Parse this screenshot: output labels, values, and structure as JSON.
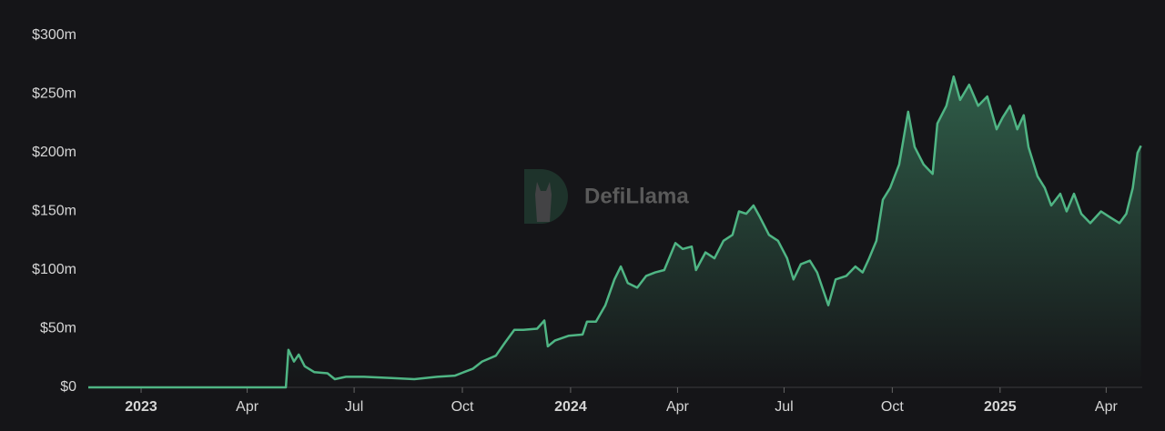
{
  "chart_data": {
    "type": "area",
    "watermark": "DefiLlama",
    "x": [
      2022.877,
      2023.337,
      2023.343,
      2023.356,
      2023.367,
      2023.381,
      2023.403,
      2023.434,
      2023.451,
      2023.477,
      2023.519,
      2023.583,
      2023.636,
      2023.689,
      2023.731,
      2023.752,
      2023.773,
      2023.794,
      2023.826,
      2023.847,
      2023.869,
      2023.89,
      2023.922,
      2023.939,
      2023.947,
      2023.964,
      2023.996,
      2024.028,
      2024.038,
      2024.059,
      2024.081,
      2024.102,
      2024.117,
      2024.133,
      2024.155,
      2024.176,
      2024.197,
      2024.218,
      2024.244,
      2024.261,
      2024.282,
      2024.292,
      2024.314,
      2024.335,
      2024.356,
      2024.377,
      2024.392,
      2024.409,
      2024.426,
      2024.441,
      2024.462,
      2024.483,
      2024.504,
      2024.519,
      2024.536,
      2024.557,
      2024.574,
      2024.6,
      2024.617,
      2024.642,
      2024.663,
      2024.68,
      2024.695,
      2024.712,
      2024.727,
      2024.744,
      2024.765,
      2024.786,
      2024.801,
      2024.822,
      2024.843,
      2024.854,
      2024.875,
      2024.892,
      2024.907,
      2024.928,
      2024.949,
      2024.97,
      2024.992,
      2025.006,
      2025.023,
      2025.04,
      2025.055,
      2025.066,
      2025.087,
      2025.104,
      2025.119,
      2025.14,
      2025.155,
      2025.172,
      2025.189,
      2025.21,
      2025.235,
      2025.256,
      2025.278,
      2025.294,
      2025.309,
      2025.32,
      2025.328
    ],
    "values": [
      0,
      0,
      32,
      22,
      28,
      18,
      13,
      12,
      7,
      9,
      9,
      8,
      7,
      9,
      10,
      13,
      16,
      22,
      27,
      38,
      49,
      49,
      50,
      57,
      35,
      40,
      44,
      45,
      56,
      56,
      70,
      92,
      103,
      89,
      85,
      95,
      98,
      100,
      123,
      118,
      120,
      100,
      115,
      110,
      125,
      130,
      150,
      148,
      155,
      145,
      130,
      125,
      110,
      92,
      105,
      108,
      98,
      70,
      92,
      95,
      103,
      98,
      110,
      125,
      160,
      170,
      190,
      235,
      205,
      190,
      182,
      225,
      240,
      265,
      245,
      258,
      240,
      248,
      220,
      230,
      240,
      220,
      232,
      205,
      180,
      170,
      155,
      165,
      150,
      165,
      148,
      140,
      150,
      145,
      140,
      148,
      170,
      200,
      206
    ],
    "color": "#4fb584",
    "xlim": [
      2022.877,
      2025.331
    ],
    "ylim": [
      0,
      300
    ],
    "yticks": [
      {
        "value": 0,
        "label": "$0"
      },
      {
        "value": 50,
        "label": "$50m"
      },
      {
        "value": 100,
        "label": "$100m"
      },
      {
        "value": 150,
        "label": "$150m"
      },
      {
        "value": 200,
        "label": "$200m"
      },
      {
        "value": 250,
        "label": "$250m"
      },
      {
        "value": 300,
        "label": "$300m"
      }
    ],
    "xticks": [
      2023,
      {
        "value": 2023.247,
        "label": "Apr"
      },
      {
        "value": 2023.496,
        "label": "Jul"
      },
      {
        "value": 2023.748,
        "label": "Oct"
      },
      2024,
      {
        "value": 2024.249,
        "label": "Apr"
      },
      {
        "value": 2024.497,
        "label": "Jul"
      },
      {
        "value": 2024.749,
        "label": "Oct"
      },
      2025,
      {
        "value": 2025.247,
        "label": "Apr"
      }
    ]
  }
}
